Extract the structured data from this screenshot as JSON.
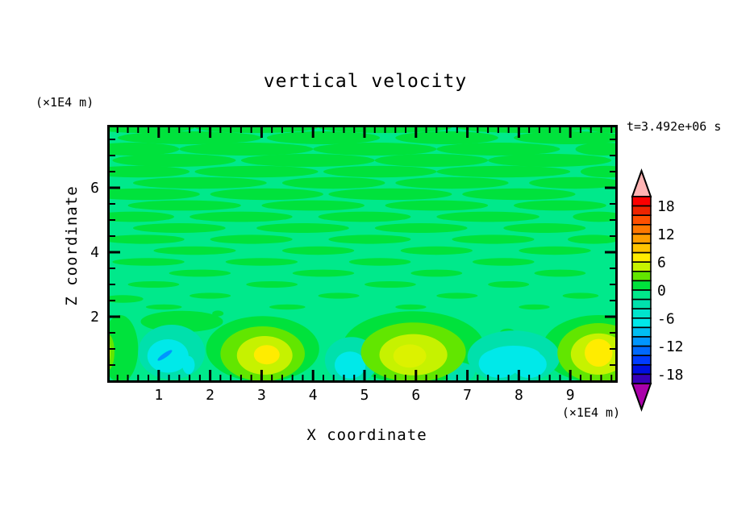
{
  "title": "vertical velocity",
  "timestamp": "t=3.492e+06 s",
  "axes": {
    "x_label": "X coordinate",
    "y_label": "Z coordinate",
    "x_unit": "(×1E4 m)",
    "y_unit": "(×1E4 m)",
    "x_tick_labels": [
      "1",
      "2",
      "3",
      "4",
      "5",
      "6",
      "7",
      "8",
      "9"
    ],
    "y_tick_labels": [
      "2",
      "4",
      "6"
    ],
    "x_range": [
      0,
      9.92
    ],
    "y_range": [
      0,
      8
    ],
    "x_minor_step": 0.2,
    "y_minor_step": 0.5
  },
  "colorbar": {
    "tick_labels": [
      "18",
      "12",
      "6",
      "0",
      "-6",
      "-12",
      "-18"
    ],
    "levels": [
      -20,
      -18,
      -16,
      -14,
      -12,
      -10,
      -8,
      -6,
      -4,
      -2,
      0,
      2,
      4,
      6,
      8,
      10,
      12,
      14,
      16,
      18,
      20
    ],
    "band_colors_top_to_bottom": [
      "#FB0000",
      "#EE2400",
      "#FF5000",
      "#FF7800",
      "#FF9E00",
      "#FFC400",
      "#FFEC00",
      "#C6F200",
      "#62E600",
      "#00E23C",
      "#00E98B",
      "#00E0AC",
      "#00E5CD",
      "#00E9E9",
      "#00BEF2",
      "#0096FF",
      "#0069FF",
      "#003CFF",
      "#000FE0",
      "#3800B8"
    ],
    "over_color": "#FFB4B4",
    "under_color": "#AA00AA"
  },
  "chart_data": {
    "type": "filled-contour",
    "title": "vertical velocity",
    "xlabel": "X coordinate (×1E4 m)",
    "ylabel": "Z coordinate (×1E4 m)",
    "time_annotation": "t=3.492e+06 s",
    "xlim": [
      0,
      9.92
    ],
    "ylim": [
      0,
      8
    ],
    "contour_interval": 2,
    "value_range_shown": [
      -20,
      20
    ],
    "background_color": "#00E98B",
    "streak_color": "#00E23C",
    "streaks": [
      [
        0.7,
        7.88,
        1.0,
        0.18
      ],
      [
        2.9,
        7.88,
        1.2,
        0.18
      ],
      [
        5.4,
        7.88,
        1.3,
        0.18
      ],
      [
        8.1,
        7.88,
        1.3,
        0.18
      ],
      [
        9.8,
        7.88,
        0.5,
        0.18
      ],
      [
        1.6,
        7.55,
        1.4,
        0.2
      ],
      [
        4.2,
        7.55,
        1.1,
        0.2
      ],
      [
        6.6,
        7.55,
        1.0,
        0.2
      ],
      [
        9.0,
        7.55,
        1.1,
        0.2
      ],
      [
        0.5,
        7.2,
        0.9,
        0.2
      ],
      [
        2.7,
        7.2,
        1.3,
        0.2
      ],
      [
        5.2,
        7.2,
        1.2,
        0.2
      ],
      [
        7.6,
        7.2,
        1.2,
        0.2
      ],
      [
        9.65,
        7.2,
        0.55,
        0.2
      ],
      [
        1.3,
        6.85,
        1.2,
        0.2
      ],
      [
        3.9,
        6.85,
        1.3,
        0.2
      ],
      [
        6.3,
        6.85,
        1.1,
        0.2
      ],
      [
        8.6,
        6.85,
        1.2,
        0.2
      ],
      [
        0.6,
        6.5,
        1.0,
        0.18
      ],
      [
        2.9,
        6.5,
        1.2,
        0.18
      ],
      [
        5.3,
        6.5,
        1.1,
        0.18
      ],
      [
        7.7,
        6.5,
        1.3,
        0.18
      ],
      [
        9.7,
        6.5,
        0.5,
        0.18
      ],
      [
        1.8,
        6.15,
        1.3,
        0.18
      ],
      [
        4.4,
        6.15,
        1.0,
        0.18
      ],
      [
        6.7,
        6.15,
        1.1,
        0.18
      ],
      [
        9.1,
        6.15,
        0.9,
        0.18
      ],
      [
        0.7,
        5.8,
        1.1,
        0.18
      ],
      [
        3.1,
        5.8,
        1.1,
        0.18
      ],
      [
        5.5,
        5.8,
        1.2,
        0.18
      ],
      [
        8.0,
        5.8,
        1.1,
        0.18
      ],
      [
        1.5,
        5.45,
        1.1,
        0.16
      ],
      [
        4.0,
        5.45,
        1.0,
        0.16
      ],
      [
        6.4,
        5.45,
        1.0,
        0.16
      ],
      [
        8.8,
        5.45,
        0.9,
        0.16
      ],
      [
        0.5,
        5.1,
        0.8,
        0.16
      ],
      [
        2.6,
        5.1,
        1.0,
        0.16
      ],
      [
        5.0,
        5.1,
        0.9,
        0.16
      ],
      [
        7.4,
        5.1,
        1.0,
        0.16
      ],
      [
        9.55,
        5.1,
        0.5,
        0.16
      ],
      [
        1.4,
        4.75,
        0.9,
        0.15
      ],
      [
        3.8,
        4.75,
        0.9,
        0.15
      ],
      [
        6.1,
        4.75,
        0.9,
        0.15
      ],
      [
        8.5,
        4.75,
        0.8,
        0.15
      ],
      [
        0.7,
        4.4,
        0.8,
        0.14
      ],
      [
        2.8,
        4.4,
        0.8,
        0.14
      ],
      [
        5.1,
        4.4,
        0.8,
        0.14
      ],
      [
        7.5,
        4.4,
        0.8,
        0.14
      ],
      [
        9.45,
        4.4,
        0.5,
        0.14
      ],
      [
        1.7,
        4.05,
        0.8,
        0.13
      ],
      [
        4.1,
        4.05,
        0.7,
        0.13
      ],
      [
        6.4,
        4.05,
        0.7,
        0.13
      ],
      [
        8.7,
        4.05,
        0.7,
        0.13
      ],
      [
        0.8,
        3.7,
        0.7,
        0.12
      ],
      [
        3.0,
        3.7,
        0.7,
        0.12
      ],
      [
        5.3,
        3.7,
        0.6,
        0.12
      ],
      [
        7.7,
        3.7,
        0.6,
        0.12
      ],
      [
        1.8,
        3.35,
        0.6,
        0.11
      ],
      [
        4.2,
        3.35,
        0.6,
        0.11
      ],
      [
        6.4,
        3.35,
        0.5,
        0.11
      ],
      [
        8.8,
        3.35,
        0.5,
        0.11
      ],
      [
        0.9,
        3.0,
        0.5,
        0.1
      ],
      [
        3.2,
        3.0,
        0.5,
        0.1
      ],
      [
        5.5,
        3.0,
        0.5,
        0.1
      ],
      [
        7.8,
        3.0,
        0.4,
        0.1
      ],
      [
        2.0,
        2.65,
        0.4,
        0.09
      ],
      [
        4.5,
        2.65,
        0.4,
        0.09
      ],
      [
        6.8,
        2.65,
        0.4,
        0.09
      ],
      [
        9.2,
        2.65,
        0.35,
        0.09
      ],
      [
        1.1,
        2.3,
        0.35,
        0.08
      ],
      [
        3.5,
        2.3,
        0.35,
        0.08
      ],
      [
        5.9,
        2.3,
        0.3,
        0.08
      ],
      [
        8.3,
        2.3,
        0.3,
        0.08
      ],
      [
        0.3,
        2.55,
        0.4,
        0.12
      ]
    ],
    "features": [
      {
        "x": 0.25,
        "z": 1.0,
        "rx": 0.35,
        "rz": 1.05,
        "color": "#00E23C"
      },
      {
        "x": 1.45,
        "z": 1.85,
        "rx": 0.8,
        "rz": 0.33,
        "color": "#00E23C"
      },
      {
        "x": 3.02,
        "z": 1.0,
        "rx": 1.1,
        "rz": 1.02,
        "color": "#00E23C"
      },
      {
        "x": 5.95,
        "z": 1.05,
        "rx": 1.38,
        "rz": 1.12,
        "color": "#00E23C"
      },
      {
        "x": 9.55,
        "z": 1.0,
        "rx": 1.1,
        "rz": 1.05,
        "color": "#00E23C"
      },
      {
        "x": 7.78,
        "z": 1.5,
        "rx": 0.15,
        "rz": 0.13,
        "color": "#00E23C"
      },
      {
        "x": 5.88,
        "z": 2.0,
        "rx": 0.13,
        "rz": 0.1,
        "color": "#00E23C"
      },
      {
        "x": 2.15,
        "z": 2.1,
        "rx": 0.11,
        "rz": 0.09,
        "color": "#00E23C"
      },
      {
        "x": 1.25,
        "z": 0.9,
        "rx": 0.65,
        "rz": 0.85,
        "color": "#00E0AC"
      },
      {
        "x": 1.18,
        "z": 0.78,
        "rx": 0.4,
        "rz": 0.52,
        "color": "#00E9E9"
      },
      {
        "x": 1.12,
        "z": 0.8,
        "rx": 0.17,
        "rz": 0.07,
        "rot": -35,
        "color": "#0096FF"
      },
      {
        "x": 1.58,
        "z": 0.5,
        "rx": 0.12,
        "rz": 0.28,
        "color": "#00E9E9"
      },
      {
        "x": 4.75,
        "z": 0.65,
        "rx": 0.52,
        "rz": 0.72,
        "color": "#00E0AC"
      },
      {
        "x": 4.72,
        "z": 0.5,
        "rx": 0.3,
        "rz": 0.42,
        "color": "#00E9E9"
      },
      {
        "x": 7.9,
        "z": 0.75,
        "rx": 0.9,
        "rz": 0.82,
        "color": "#00E0AC"
      },
      {
        "x": 7.62,
        "z": 0.55,
        "rx": 0.4,
        "rz": 0.45,
        "color": "#00E9E9"
      },
      {
        "x": 8.2,
        "z": 0.52,
        "rx": 0.34,
        "rz": 0.42,
        "color": "#00E9E9"
      },
      {
        "x": 7.9,
        "z": 0.8,
        "rx": 0.52,
        "rz": 0.3,
        "color": "#00E9E9"
      },
      {
        "x": 6.85,
        "z": 0.28,
        "rx": 0.3,
        "rz": 0.3,
        "color": "#00E0AC"
      },
      {
        "x": 3.02,
        "z": 0.85,
        "rx": 0.82,
        "rz": 0.85,
        "color": "#62E600"
      },
      {
        "x": 3.06,
        "z": 0.8,
        "rx": 0.54,
        "rz": 0.6,
        "color": "#C6F200"
      },
      {
        "x": 3.1,
        "z": 0.82,
        "rx": 0.25,
        "rz": 0.3,
        "color": "#FFEC00"
      },
      {
        "x": 5.95,
        "z": 0.9,
        "rx": 1.02,
        "rz": 0.92,
        "color": "#62E600"
      },
      {
        "x": 5.95,
        "z": 0.82,
        "rx": 0.66,
        "rz": 0.64,
        "color": "#C6F200"
      },
      {
        "x": 5.88,
        "z": 0.78,
        "rx": 0.32,
        "rz": 0.36,
        "color": "#DCF200"
      },
      {
        "x": 9.55,
        "z": 0.88,
        "rx": 0.8,
        "rz": 0.92,
        "color": "#62E600"
      },
      {
        "x": 9.55,
        "z": 0.84,
        "rx": 0.54,
        "rz": 0.64,
        "color": "#C6F200"
      },
      {
        "x": 9.55,
        "z": 0.88,
        "rx": 0.27,
        "rz": 0.43,
        "color": "#FFEC00"
      },
      {
        "x": 0.02,
        "z": 0.9,
        "rx": 0.12,
        "rz": 0.55,
        "color": "#62E600"
      },
      {
        "x": 0.0,
        "z": 0.9,
        "rx": 0.06,
        "rz": 0.42,
        "color": "#C6F200"
      }
    ]
  }
}
